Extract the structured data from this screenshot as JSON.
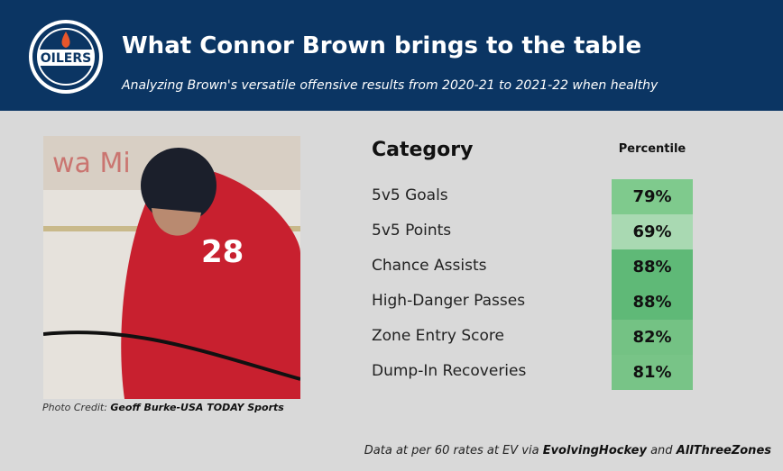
{
  "header": {
    "logo": "OILERS",
    "title": "What Connor Brown brings to the table",
    "subtitle": "Analyzing Brown's versatile offensive results from 2020-21 to 2021-22 when healthy"
  },
  "photo_credit": {
    "label": "Photo Credit:",
    "source": "Geoff Burke-USA TODAY Sports"
  },
  "table": {
    "headers": [
      "Category",
      "Percentile"
    ],
    "rows": [
      {
        "category": "5v5 Goals",
        "percentile": "79%",
        "color": "#7fca8d"
      },
      {
        "category": "5v5 Points",
        "percentile": "69%",
        "color": "#a9d9b2"
      },
      {
        "category": "Chance Assists",
        "percentile": "88%",
        "color": "#5fb977"
      },
      {
        "category": "High-Danger Passes",
        "percentile": "88%",
        "color": "#5fb977"
      },
      {
        "category": "Zone Entry Score",
        "percentile": "82%",
        "color": "#74c284"
      },
      {
        "category": "Dump-In Recoveries",
        "percentile": "81%",
        "color": "#78c487"
      }
    ]
  },
  "footer": {
    "prefix": "Data at per 60 rates at EV via",
    "source1": "EvolvingHockey",
    "joiner": "and",
    "source2": "AllThreeZones"
  }
}
